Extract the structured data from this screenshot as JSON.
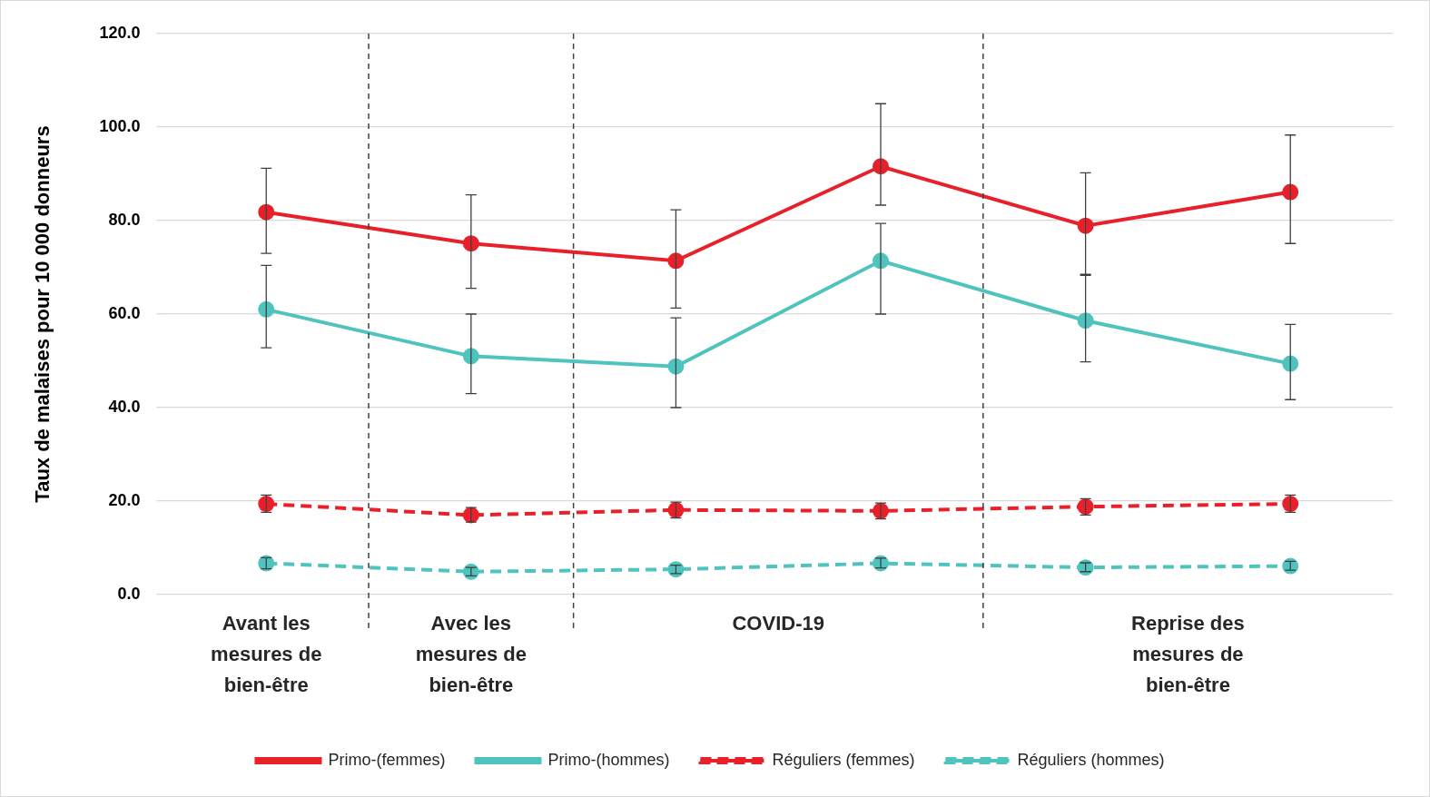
{
  "chart_data": {
    "type": "line",
    "y_label": "Taux de malaises pour 10 000 donneurs",
    "categories": [
      null,
      null,
      null,
      null,
      null,
      null
    ],
    "groups": [
      {
        "label": [
          "Avant les",
          "mesures de",
          "bien-être"
        ],
        "span": 1
      },
      {
        "label": [
          "Avec les",
          "mesures de",
          "bien-être"
        ],
        "span": 1
      },
      {
        "label": [
          "COVID-19"
        ],
        "span": 2
      },
      {
        "label": [
          "Reprise des",
          "mesures de",
          "bien-être"
        ],
        "span": 2
      }
    ],
    "ylim": [
      0,
      120
    ],
    "yticks": [
      {
        "value": 0,
        "label": "0.0"
      },
      {
        "value": 20,
        "label": "20.0"
      },
      {
        "value": 40,
        "label": "40.0"
      },
      {
        "value": 60,
        "label": "60.0"
      },
      {
        "value": 80,
        "label": "80.0"
      },
      {
        "value": 100,
        "label": "100.0"
      },
      {
        "value": 120,
        "label": "120.0"
      }
    ],
    "grid": true,
    "legend": "bottom",
    "series": [
      {
        "name": "Primo-(femmes)",
        "color": "#e8202a",
        "line_style": "solid",
        "marker": "circle",
        "values": [
          81.8,
          75.1,
          71.4,
          91.6,
          78.9,
          86.1
        ],
        "error_low": [
          73.0,
          65.5,
          61.3,
          83.3,
          68.5,
          75.1
        ],
        "error_high": [
          91.2,
          85.5,
          82.3,
          105.0,
          90.2,
          98.3
        ]
      },
      {
        "name": "Primo-(hommes)",
        "color": "#4fc3bd",
        "line_style": "solid",
        "marker": "circle",
        "values": [
          61.0,
          51.0,
          48.8,
          71.4,
          58.6,
          49.4
        ],
        "error_low": [
          52.8,
          43.0,
          40.0,
          60.0,
          49.8,
          41.7
        ],
        "error_high": [
          70.4,
          60.0,
          59.2,
          79.4,
          68.3,
          57.8
        ]
      },
      {
        "name": "Réguliers (femmes)",
        "color": "#e8202a",
        "line_style": "dashed",
        "marker": "circle",
        "values": [
          19.4,
          17.0,
          18.1,
          17.9,
          18.8,
          19.4
        ],
        "error_low": [
          17.6,
          15.5,
          16.4,
          16.2,
          17.0,
          17.6
        ],
        "error_high": [
          21.3,
          18.6,
          19.8,
          19.6,
          20.5,
          21.3
        ]
      },
      {
        "name": "Réguliers (hommes)",
        "color": "#4fc3bd",
        "line_style": "dashed",
        "marker": "circle",
        "values": [
          6.7,
          4.9,
          5.4,
          6.7,
          5.8,
          6.1
        ],
        "error_low": [
          5.5,
          4.0,
          4.5,
          5.7,
          4.9,
          5.2
        ],
        "error_high": [
          7.9,
          5.8,
          6.3,
          7.8,
          6.8,
          7.1
        ]
      }
    ]
  }
}
